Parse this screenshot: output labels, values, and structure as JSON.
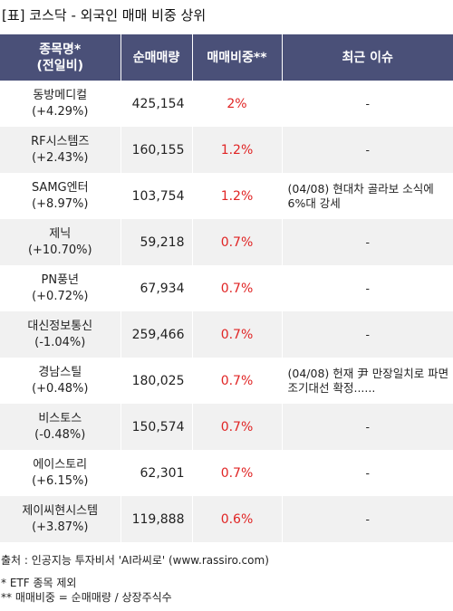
{
  "title": "[표] 코스닥 - 외국인 매매 비중 상위",
  "table": {
    "headers": {
      "name_line1": "종목명*",
      "name_line2": "(전일비)",
      "net_volume": "순매매량",
      "ratio": "매매비중**",
      "issue": "최근 이슈"
    },
    "rows": [
      {
        "name": "동방메디컬",
        "change": "(+4.29%)",
        "net_volume": "425,154",
        "ratio": "2%",
        "issue": "-"
      },
      {
        "name": "RF시스템즈",
        "change": "(+2.43%)",
        "net_volume": "160,155",
        "ratio": "1.2%",
        "issue": "-"
      },
      {
        "name": "SAMG엔터",
        "change": "(+8.97%)",
        "net_volume": "103,754",
        "ratio": "1.2%",
        "issue": "(04/08) 현대차 골라보 소식에 6%대 강세"
      },
      {
        "name": "제닉",
        "change": "(+10.70%)",
        "net_volume": "59,218",
        "ratio": "0.7%",
        "issue": "-"
      },
      {
        "name": "PN풍년",
        "change": "(+0.72%)",
        "net_volume": "67,934",
        "ratio": "0.7%",
        "issue": "-"
      },
      {
        "name": "대신정보통신",
        "change": "(-1.04%)",
        "net_volume": "259,466",
        "ratio": "0.7%",
        "issue": "-"
      },
      {
        "name": "경남스틸",
        "change": "(+0.48%)",
        "net_volume": "180,025",
        "ratio": "0.7%",
        "issue": "(04/08) 헌재 尹 만장일치로 파면 조기대선 확정......"
      },
      {
        "name": "비스토스",
        "change": "(-0.48%)",
        "net_volume": "150,574",
        "ratio": "0.7%",
        "issue": "-"
      },
      {
        "name": "에이스토리",
        "change": "(+6.15%)",
        "net_volume": "62,301",
        "ratio": "0.7%",
        "issue": "-"
      },
      {
        "name": "제이씨현시스템",
        "change": "(+3.87%)",
        "net_volume": "119,888",
        "ratio": "0.6%",
        "issue": "-"
      }
    ]
  },
  "footer": {
    "source": "출처 : 인공지능 투자비서 'AI라씨로' (www.rassiro.com)",
    "note1": "* ETF 종목 제외",
    "note2": "** 매매비중 = 순매매량 / 상장주식수"
  },
  "colors": {
    "header_bg": "#4a5078",
    "ratio_text": "#e02424",
    "stripe": "#f1f1f1"
  }
}
